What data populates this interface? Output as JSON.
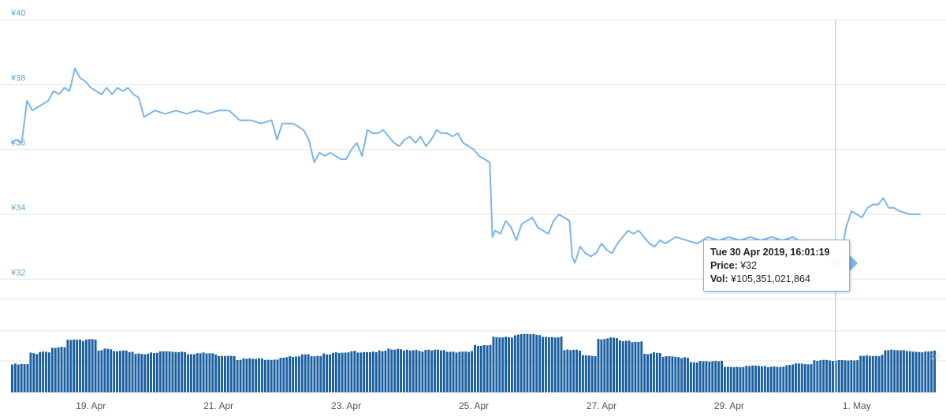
{
  "chart_data": {
    "type": "line",
    "subtype": "price-with-volume",
    "title": "",
    "xlabel": "",
    "ylabel": "",
    "currency_symbol": "¥",
    "ylim": [
      31.4,
      40
    ],
    "y_ticks": [
      32,
      34,
      36,
      38,
      40
    ],
    "y_tick_labels": [
      "¥32",
      "¥34",
      "¥36",
      "¥38",
      "¥40"
    ],
    "x_ticks": [
      "2019-04-19",
      "2019-04-21",
      "2019-04-23",
      "2019-04-25",
      "2019-04-27",
      "2019-04-29",
      "2019-05-01"
    ],
    "x_tick_labels": [
      "19. Apr",
      "21. Apr",
      "23. Apr",
      "25. Apr",
      "27. Apr",
      "29. Apr",
      "1. May"
    ],
    "x_range": [
      "2019-04-17T18:00",
      "2019-05-02T06:00"
    ],
    "grid": true,
    "colors": {
      "line": "#7cb5ec",
      "volume": "#1a5fa0",
      "marker": "#1a5fa0",
      "grid": "#e6e6e6",
      "crosshair": "#b8b8b8",
      "ytick": "#5aa6d8"
    },
    "series": [
      {
        "type": "line",
        "points": [
          [
            "2019-04-17T18:00",
            36.2
          ],
          [
            "2019-04-17T20:00",
            36.3
          ],
          [
            "2019-04-17T22:00",
            36.2
          ],
          [
            "2019-04-18T00:00",
            37.5
          ],
          [
            "2019-04-18T02:00",
            37.2
          ],
          [
            "2019-04-18T04:00",
            37.3
          ],
          [
            "2019-04-18T06:00",
            37.4
          ],
          [
            "2019-04-18T08:00",
            37.5
          ],
          [
            "2019-04-18T10:00",
            37.8
          ],
          [
            "2019-04-18T12:00",
            37.7
          ],
          [
            "2019-04-18T14:00",
            37.9
          ],
          [
            "2019-04-18T16:00",
            37.8
          ],
          [
            "2019-04-18T18:00",
            38.5
          ],
          [
            "2019-04-18T20:00",
            38.2
          ],
          [
            "2019-04-18T22:00",
            38.1
          ],
          [
            "2019-04-19T00:00",
            37.9
          ],
          [
            "2019-04-19T02:00",
            37.8
          ],
          [
            "2019-04-19T04:00",
            37.7
          ],
          [
            "2019-04-19T06:00",
            37.9
          ],
          [
            "2019-04-19T08:00",
            37.7
          ],
          [
            "2019-04-19T10:00",
            37.9
          ],
          [
            "2019-04-19T12:00",
            37.8
          ],
          [
            "2019-04-19T14:00",
            37.9
          ],
          [
            "2019-04-19T16:00",
            37.7
          ],
          [
            "2019-04-19T18:00",
            37.6
          ],
          [
            "2019-04-19T20:00",
            37.0
          ],
          [
            "2019-04-19T22:00",
            37.1
          ],
          [
            "2019-04-20T00:00",
            37.2
          ],
          [
            "2019-04-20T04:00",
            37.1
          ],
          [
            "2019-04-20T08:00",
            37.2
          ],
          [
            "2019-04-20T12:00",
            37.1
          ],
          [
            "2019-04-20T16:00",
            37.2
          ],
          [
            "2019-04-20T20:00",
            37.1
          ],
          [
            "2019-04-21T00:00",
            37.2
          ],
          [
            "2019-04-21T04:00",
            37.2
          ],
          [
            "2019-04-21T08:00",
            36.9
          ],
          [
            "2019-04-21T12:00",
            36.9
          ],
          [
            "2019-04-21T16:00",
            36.8
          ],
          [
            "2019-04-21T20:00",
            36.9
          ],
          [
            "2019-04-21T22:00",
            36.3
          ],
          [
            "2019-04-22T00:00",
            36.8
          ],
          [
            "2019-04-22T04:00",
            36.8
          ],
          [
            "2019-04-22T08:00",
            36.6
          ],
          [
            "2019-04-22T10:00",
            36.3
          ],
          [
            "2019-04-22T12:00",
            35.6
          ],
          [
            "2019-04-22T14:00",
            35.9
          ],
          [
            "2019-04-22T16:00",
            35.8
          ],
          [
            "2019-04-22T18:00",
            35.9
          ],
          [
            "2019-04-22T20:00",
            35.8
          ],
          [
            "2019-04-22T22:00",
            35.7
          ],
          [
            "2019-04-23T00:00",
            35.7
          ],
          [
            "2019-04-23T02:00",
            36.0
          ],
          [
            "2019-04-23T04:00",
            36.2
          ],
          [
            "2019-04-23T06:00",
            35.8
          ],
          [
            "2019-04-23T08:00",
            36.6
          ],
          [
            "2019-04-23T10:00",
            36.5
          ],
          [
            "2019-04-23T12:00",
            36.5
          ],
          [
            "2019-04-23T14:00",
            36.6
          ],
          [
            "2019-04-23T16:00",
            36.4
          ],
          [
            "2019-04-23T18:00",
            36.2
          ],
          [
            "2019-04-23T20:00",
            36.1
          ],
          [
            "2019-04-23T22:00",
            36.3
          ],
          [
            "2019-04-24T00:00",
            36.4
          ],
          [
            "2019-04-24T02:00",
            36.2
          ],
          [
            "2019-04-24T04:00",
            36.4
          ],
          [
            "2019-04-24T06:00",
            36.1
          ],
          [
            "2019-04-24T08:00",
            36.3
          ],
          [
            "2019-04-24T10:00",
            36.6
          ],
          [
            "2019-04-24T12:00",
            36.5
          ],
          [
            "2019-04-24T14:00",
            36.5
          ],
          [
            "2019-04-24T16:00",
            36.4
          ],
          [
            "2019-04-24T18:00",
            36.5
          ],
          [
            "2019-04-24T20:00",
            36.2
          ],
          [
            "2019-04-24T22:00",
            36.1
          ],
          [
            "2019-04-25T00:00",
            36.0
          ],
          [
            "2019-04-25T02:00",
            35.8
          ],
          [
            "2019-04-25T04:00",
            35.7
          ],
          [
            "2019-04-25T06:00",
            35.6
          ],
          [
            "2019-04-25T07:00",
            33.3
          ],
          [
            "2019-04-25T08:00",
            33.5
          ],
          [
            "2019-04-25T10:00",
            33.4
          ],
          [
            "2019-04-25T12:00",
            33.8
          ],
          [
            "2019-04-25T14:00",
            33.6
          ],
          [
            "2019-04-25T16:00",
            33.2
          ],
          [
            "2019-04-25T18:00",
            33.7
          ],
          [
            "2019-04-25T20:00",
            33.8
          ],
          [
            "2019-04-25T22:00",
            33.9
          ],
          [
            "2019-04-26T00:00",
            33.6
          ],
          [
            "2019-04-26T02:00",
            33.5
          ],
          [
            "2019-04-26T04:00",
            33.4
          ],
          [
            "2019-04-26T06:00",
            33.8
          ],
          [
            "2019-04-26T08:00",
            34.0
          ],
          [
            "2019-04-26T10:00",
            33.9
          ],
          [
            "2019-04-26T12:00",
            33.8
          ],
          [
            "2019-04-26T13:00",
            32.7
          ],
          [
            "2019-04-26T14:00",
            32.5
          ],
          [
            "2019-04-26T16:00",
            33.0
          ],
          [
            "2019-04-26T18:00",
            32.8
          ],
          [
            "2019-04-26T20:00",
            32.7
          ],
          [
            "2019-04-26T22:00",
            32.8
          ],
          [
            "2019-04-27T00:00",
            33.1
          ],
          [
            "2019-04-27T02:00",
            32.9
          ],
          [
            "2019-04-27T04:00",
            32.8
          ],
          [
            "2019-04-27T06:00",
            33.1
          ],
          [
            "2019-04-27T08:00",
            33.3
          ],
          [
            "2019-04-27T10:00",
            33.5
          ],
          [
            "2019-04-27T12:00",
            33.4
          ],
          [
            "2019-04-27T14:00",
            33.5
          ],
          [
            "2019-04-27T16:00",
            33.3
          ],
          [
            "2019-04-27T18:00",
            33.1
          ],
          [
            "2019-04-27T20:00",
            33.0
          ],
          [
            "2019-04-27T22:00",
            33.2
          ],
          [
            "2019-04-28T00:00",
            33.1
          ],
          [
            "2019-04-28T04:00",
            33.3
          ],
          [
            "2019-04-28T08:00",
            33.2
          ],
          [
            "2019-04-28T12:00",
            33.1
          ],
          [
            "2019-04-28T16:00",
            33.3
          ],
          [
            "2019-04-28T20:00",
            33.2
          ],
          [
            "2019-04-29T00:00",
            33.3
          ],
          [
            "2019-04-29T04:00",
            33.2
          ],
          [
            "2019-04-29T08:00",
            33.3
          ],
          [
            "2019-04-29T12:00",
            33.2
          ],
          [
            "2019-04-29T16:00",
            33.3
          ],
          [
            "2019-04-29T20:00",
            33.2
          ],
          [
            "2019-04-30T00:00",
            33.3
          ],
          [
            "2019-04-30T04:00",
            33.1
          ],
          [
            "2019-04-30T08:00",
            33.0
          ],
          [
            "2019-04-30T12:00",
            32.8
          ],
          [
            "2019-04-30T16:01",
            32.5
          ],
          [
            "2019-04-30T18:00",
            32.7
          ],
          [
            "2019-04-30T20:00",
            33.6
          ],
          [
            "2019-04-30T22:00",
            34.1
          ],
          [
            "2019-05-01T00:00",
            34.0
          ],
          [
            "2019-05-01T02:00",
            33.9
          ],
          [
            "2019-05-01T04:00",
            34.2
          ],
          [
            "2019-05-01T06:00",
            34.3
          ],
          [
            "2019-05-01T08:00",
            34.3
          ],
          [
            "2019-05-01T10:00",
            34.5
          ],
          [
            "2019-05-01T12:00",
            34.2
          ],
          [
            "2019-05-01T14:00",
            34.2
          ],
          [
            "2019-05-01T16:00",
            34.1
          ],
          [
            "2019-05-01T20:00",
            34.0
          ],
          [
            "2019-05-02T00:00",
            34.0
          ]
        ]
      },
      {
        "type": "column",
        "role": "volume",
        "relative_levels": [
          [
            0.0,
            0.3
          ],
          [
            0.02,
            0.3
          ],
          [
            0.025,
            0.42
          ],
          [
            0.04,
            0.44
          ],
          [
            0.06,
            0.48
          ],
          [
            0.08,
            0.56
          ],
          [
            0.1,
            0.58
          ],
          [
            0.115,
            0.46
          ],
          [
            0.14,
            0.44
          ],
          [
            0.17,
            0.42
          ],
          [
            0.2,
            0.44
          ],
          [
            0.24,
            0.42
          ],
          [
            0.27,
            0.4
          ],
          [
            0.3,
            0.36
          ],
          [
            0.33,
            0.36
          ],
          [
            0.35,
            0.38
          ],
          [
            0.38,
            0.4
          ],
          [
            0.41,
            0.42
          ],
          [
            0.45,
            0.44
          ],
          [
            0.5,
            0.46
          ],
          [
            0.53,
            0.45
          ],
          [
            0.57,
            0.44
          ],
          [
            0.6,
            0.5
          ],
          [
            0.62,
            0.6
          ],
          [
            0.65,
            0.62
          ],
          [
            0.69,
            0.6
          ],
          [
            0.71,
            0.45
          ],
          [
            0.73,
            0.4
          ],
          [
            0.75,
            0.58
          ],
          [
            0.79,
            0.55
          ],
          [
            0.81,
            0.42
          ],
          [
            0.84,
            0.38
          ],
          [
            0.88,
            0.33
          ],
          [
            0.92,
            0.28
          ],
          [
            0.96,
            0.28
          ],
          [
            1.0,
            0.3
          ],
          [
            1.03,
            0.35
          ],
          [
            1.06,
            0.34
          ],
          [
            1.09,
            0.4
          ],
          [
            1.12,
            0.45
          ],
          [
            1.16,
            0.44
          ],
          [
            1.17,
            0.44
          ]
        ]
      }
    ],
    "crosshair_x": "2019-04-30T16:01",
    "volume_axis_label_visible": "10"
  },
  "tooltip": {
    "title": "Tue 30 Apr 2019, 16:01:19",
    "price_label": "Price:",
    "price_value": "¥32",
    "vol_label": "Vol:",
    "vol_value": "¥105,351,021,864"
  }
}
